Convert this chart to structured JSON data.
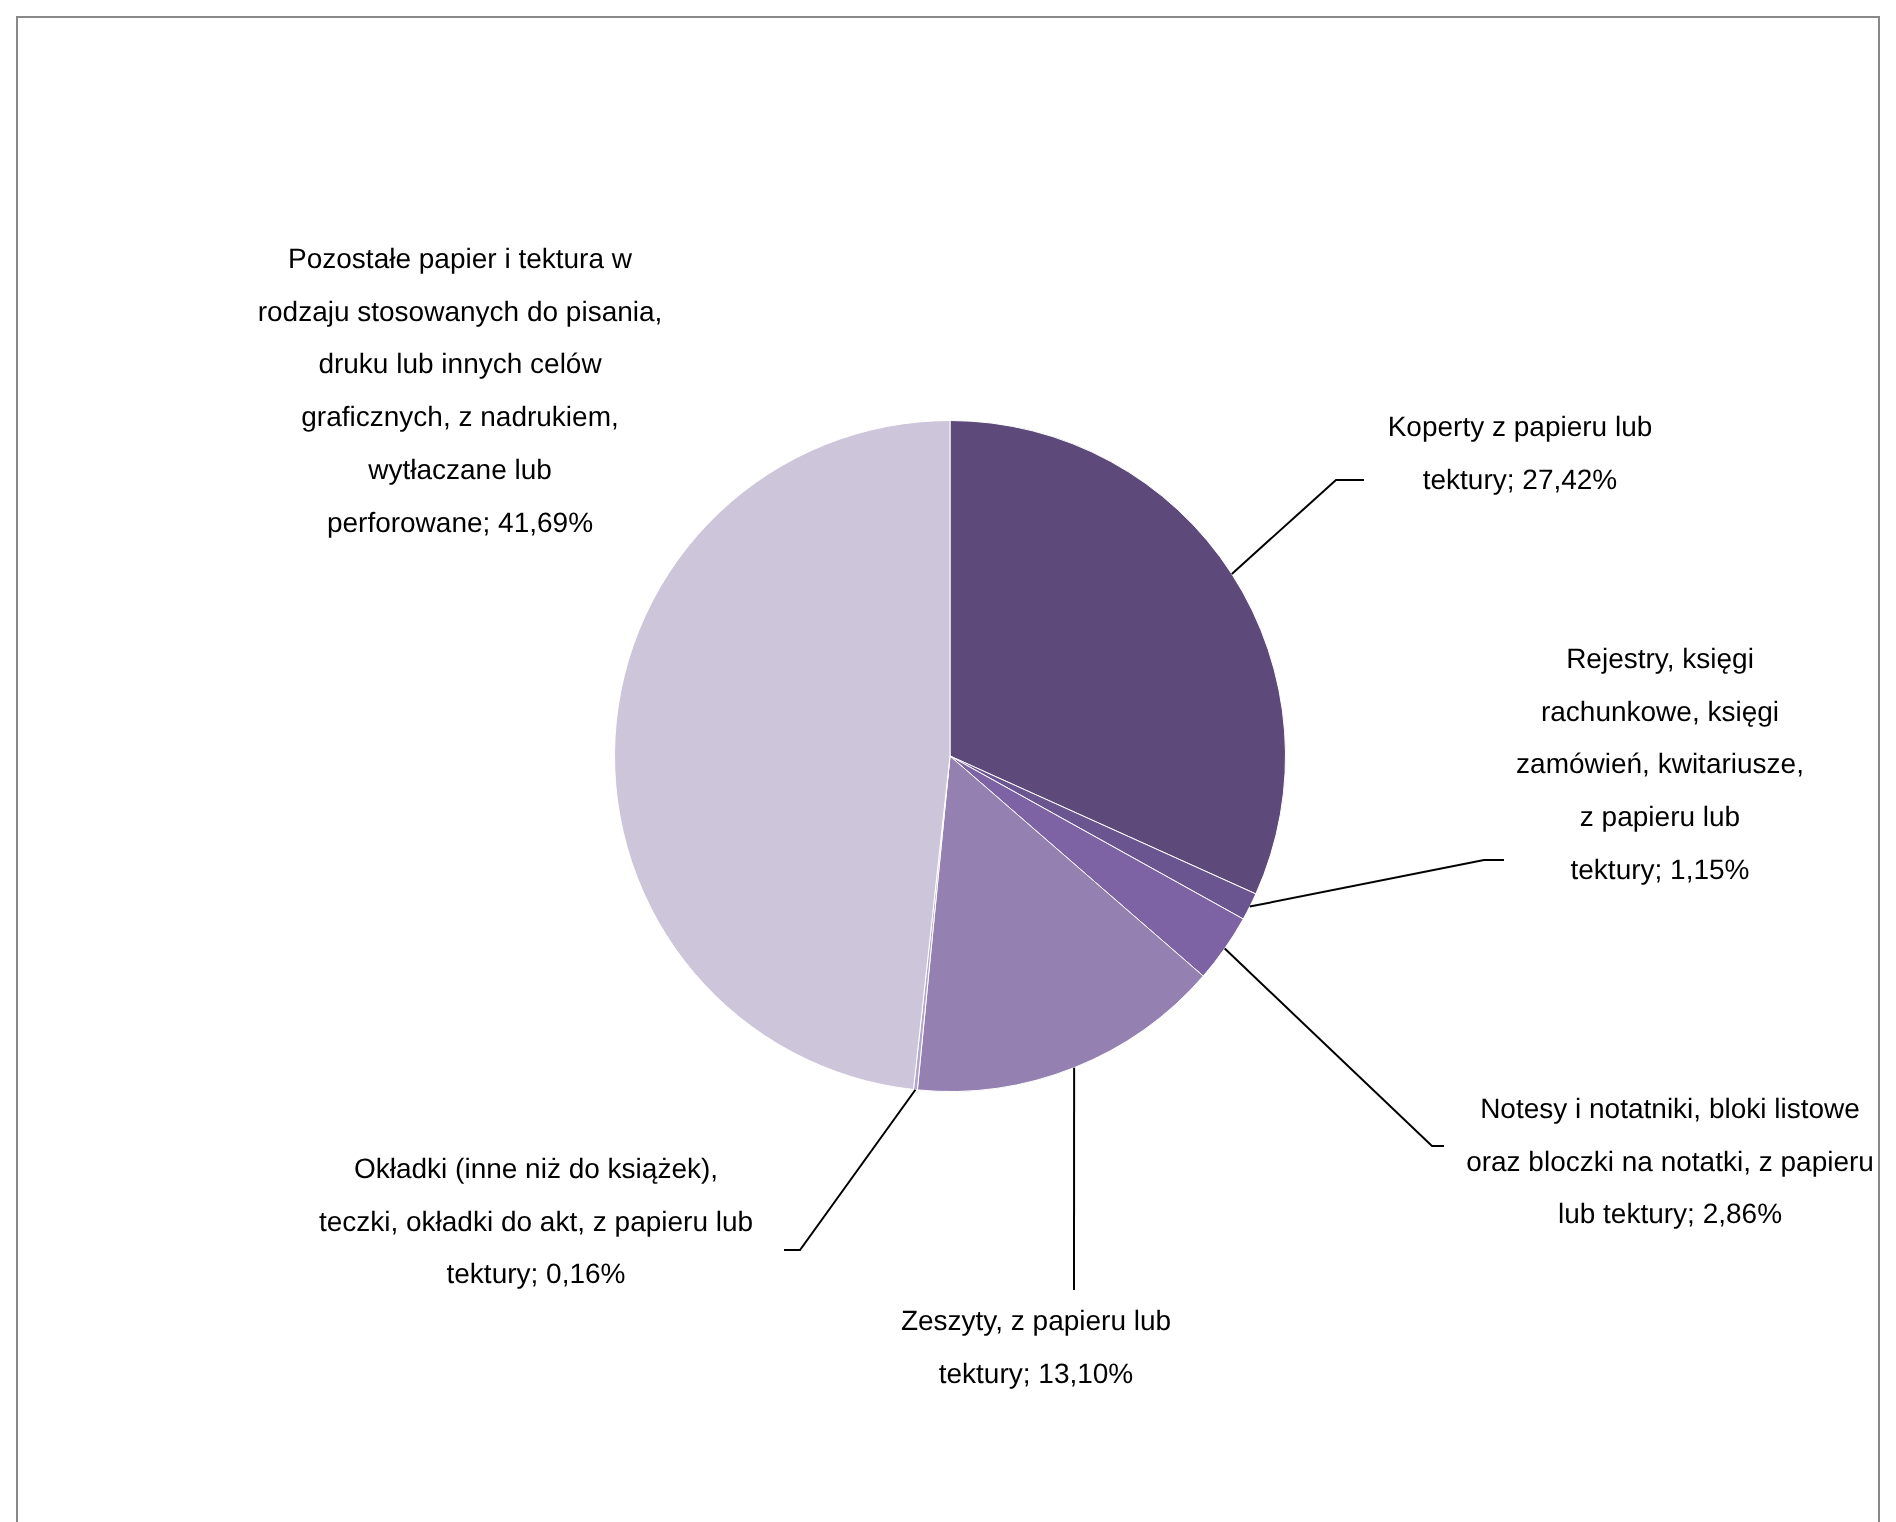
{
  "chart_data": {
    "type": "pie",
    "categories": [
      "Koperty z papieru lub tektury",
      "Rejestry, księgi rachunkowe, księgi zamówień, kwitariusze, z papieru lub tektury",
      "Notesy i notatniki, bloki listowe oraz bloczki na notatki, z papieru lub tektury",
      "Zeszyty, z papieru lub tektury",
      "Okładki (inne niż do książek), teczki, okładki do akt, z papieru lub tektury",
      "Pozostałe papier i tektura w rodzaju stosowanych do pisania, druku lub innych celów graficznych, z nadrukiem, wytłaczane lub perforowane"
    ],
    "values": [
      27.42,
      1.15,
      2.86,
      13.1,
      0.16,
      41.69
    ],
    "value_labels": [
      "27,42%",
      "1,15%",
      "2,86%",
      "13,10%",
      "0,16%",
      "41,69%"
    ],
    "colors": [
      "#5e4a7a",
      "#6b5590",
      "#7d62a4",
      "#9581b1",
      "#b3a6c9",
      "#cdc6da"
    ],
    "legend": false
  }
}
